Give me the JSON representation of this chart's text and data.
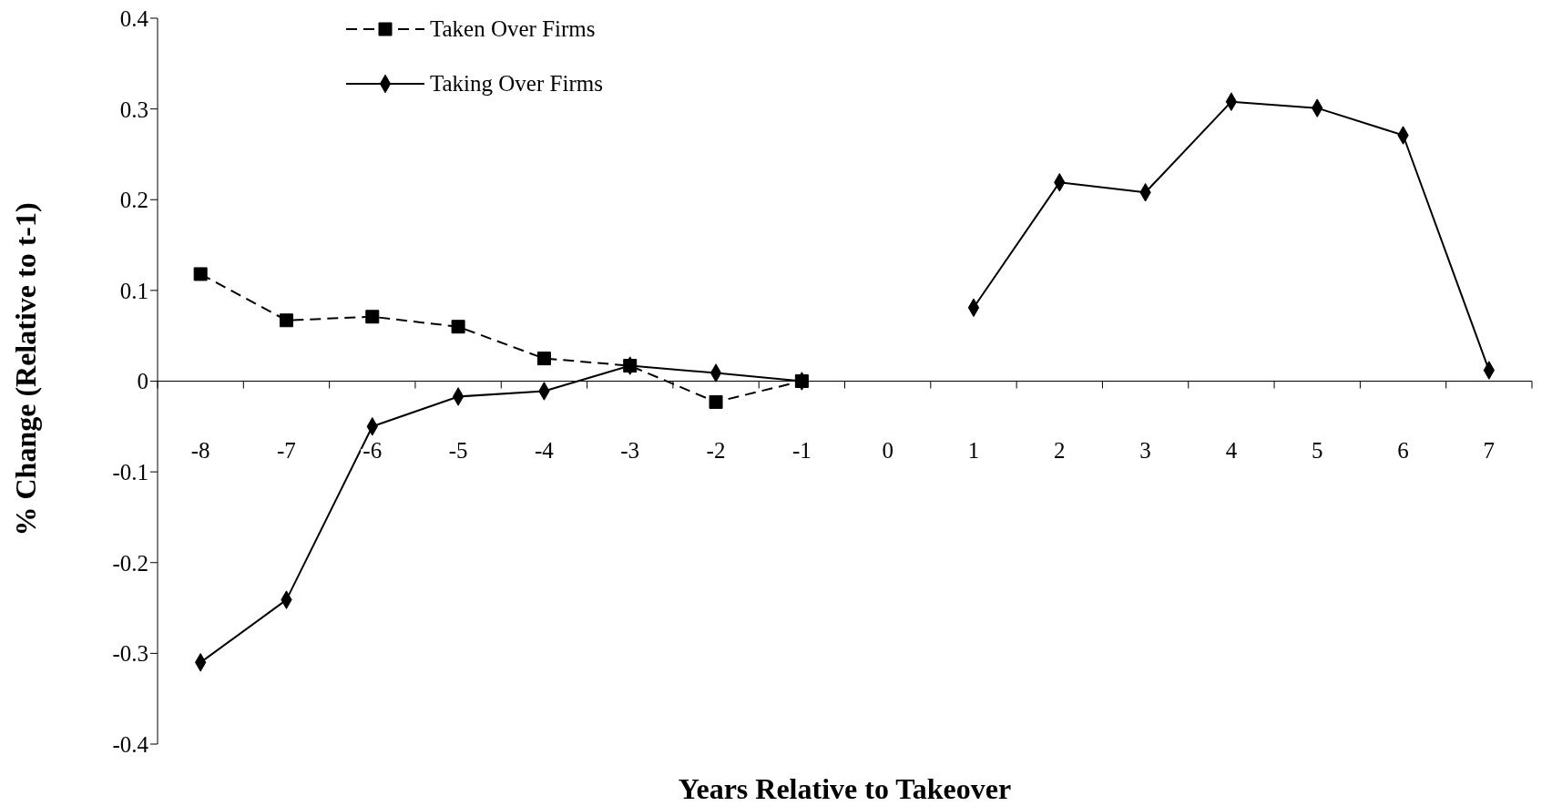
{
  "chart_data": {
    "type": "line",
    "xlabel": "Years Relative to Takeover",
    "ylabel": "% Change (Relative to t-1)",
    "categories": [
      "-8",
      "-7",
      "-6",
      "-5",
      "-4",
      "-3",
      "-2",
      "-1",
      "0",
      "1",
      "2",
      "3",
      "4",
      "5",
      "6",
      "7"
    ],
    "series": [
      {
        "name": "Taken Over Firms",
        "color": "#000000",
        "marker": "square",
        "line_style": "dashed",
        "values": [
          0.118,
          0.067,
          0.071,
          0.06,
          0.025,
          0.017,
          -0.023,
          0,
          null,
          null,
          null,
          null,
          null,
          null,
          null,
          null
        ]
      },
      {
        "name": "Taking Over Firms",
        "color": "#000000",
        "marker": "diamond",
        "line_style": "solid",
        "values": [
          -0.31,
          -0.241,
          -0.05,
          -0.017,
          -0.011,
          0.017,
          0.009,
          0,
          null,
          0.081,
          0.219,
          0.208,
          0.308,
          0.301,
          0.271,
          0.012
        ]
      }
    ],
    "ylim": [
      -0.4,
      0.4
    ],
    "yticks": [
      -0.4,
      -0.3,
      -0.2,
      -0.1,
      0,
      0.1,
      0.2,
      0.3,
      0.4
    ],
    "grid": false,
    "legend": "top left"
  }
}
